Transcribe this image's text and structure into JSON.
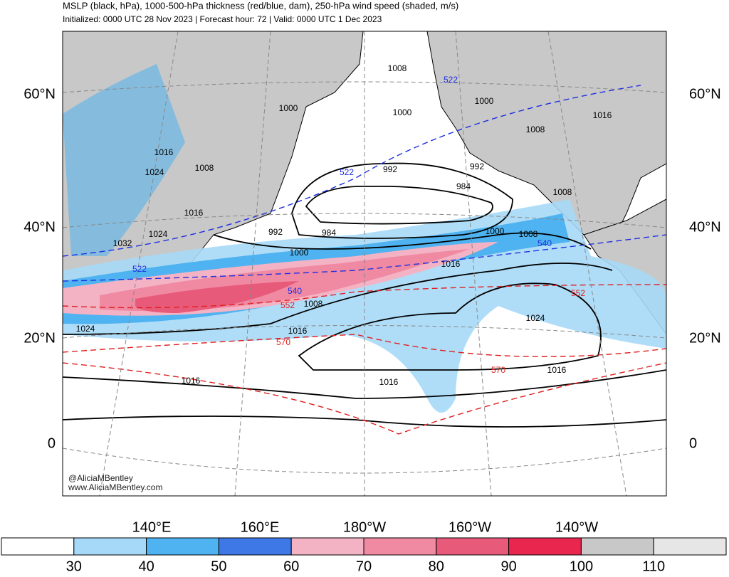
{
  "header": {
    "title": "MSLP (black, hPa), 1000-500-hPa thickness (red/blue, dam), 250-hPa wind speed (shaded, m/s)",
    "subtitle": "Initialized: 0000 UTC 28 Nov 2023 | Forecast hour: 72 | Valid: 0000 UTC 1 Dec 2023"
  },
  "map": {
    "lat_labels": [
      "60°N",
      "40°N",
      "20°N",
      "0"
    ],
    "lon_labels": [
      "140°E",
      "160°E",
      "180°W",
      "160°W",
      "140°W"
    ],
    "pressure_labels": [
      1008,
      1000,
      1000,
      1000,
      1008,
      1016,
      1024,
      1008,
      992,
      992,
      984,
      1016,
      1024,
      1032,
      992,
      984,
      1000,
      1008,
      1000,
      1016,
      1008,
      1016,
      1024,
      1024,
      1016,
      1008,
      1016,
      1016,
      1016
    ],
    "thickness_labels_blue": [
      522,
      522,
      522,
      540,
      540
    ],
    "thickness_labels_red": [
      552,
      552,
      570,
      570
    ],
    "credits": [
      "@AliciaMBentley",
      "www.AliciaMBentley.com"
    ]
  },
  "colorbar": {
    "ticks": [
      30,
      40,
      50,
      60,
      70,
      80,
      90,
      100,
      110
    ],
    "colors": [
      "#ffffff",
      "#a6d9f7",
      "#4eb3f0",
      "#3d78e6",
      "#f4b3c4",
      "#f089a2",
      "#e85a7a",
      "#e8264e",
      "#c8c8c8",
      "#e6e6e6"
    ]
  }
}
